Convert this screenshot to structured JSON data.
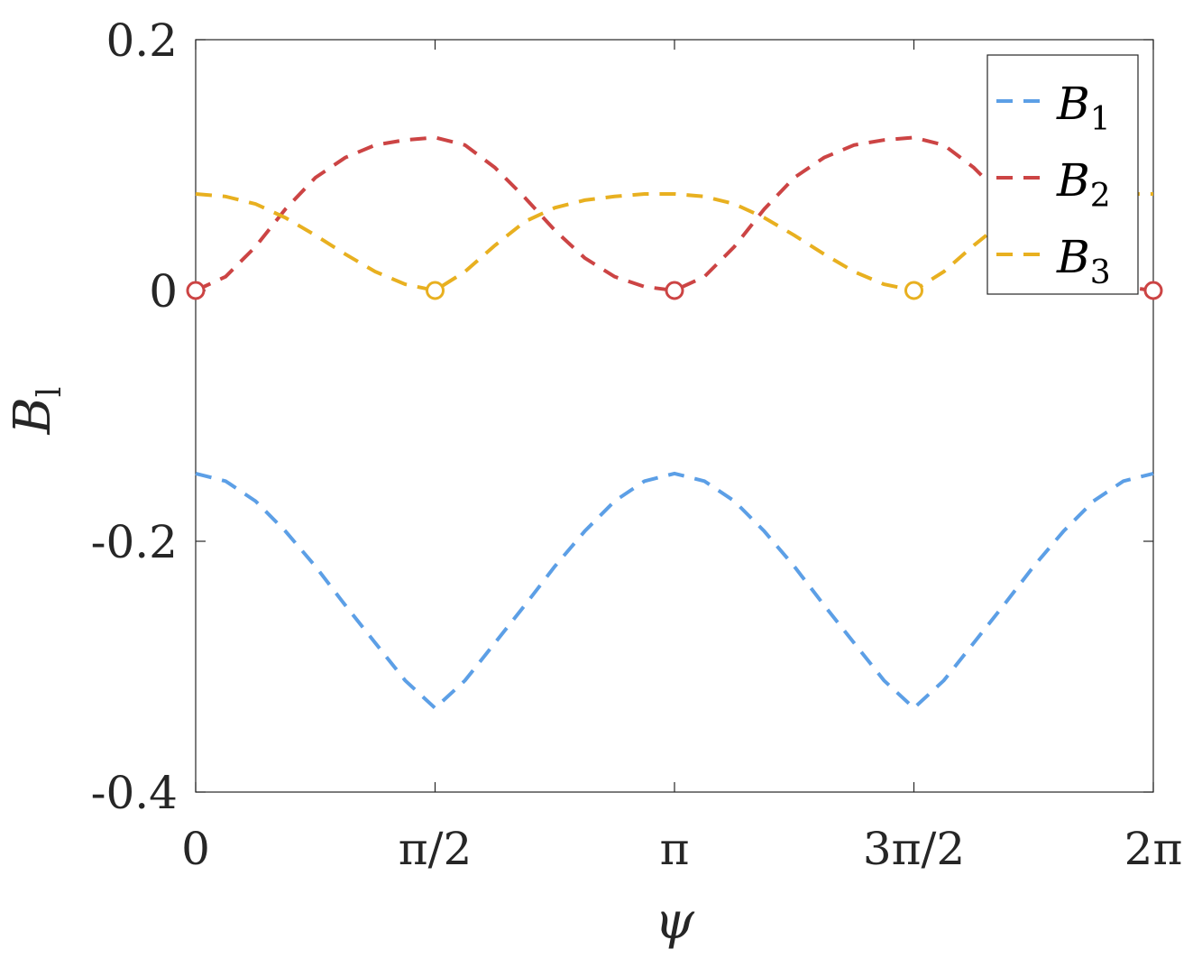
{
  "chart_data": {
    "type": "line",
    "title": "",
    "xlabel": "ψ",
    "ylabel": "B",
    "ylabel_sub": "l",
    "xlim": [
      0,
      6.283185307
    ],
    "ylim": [
      -0.4,
      0.2
    ],
    "xticks": [
      {
        "value": 0,
        "label": "0"
      },
      {
        "value": 1.570796327,
        "label": "π/2"
      },
      {
        "value": 3.141592654,
        "label": "π"
      },
      {
        "value": 4.71238898,
        "label": "3π/2"
      },
      {
        "value": 6.283185307,
        "label": "2π"
      }
    ],
    "yticks": [
      {
        "value": 0.2,
        "label": "0.2"
      },
      {
        "value": 0,
        "label": "0"
      },
      {
        "value": -0.2,
        "label": "-0.2"
      },
      {
        "value": -0.4,
        "label": "-0.4"
      }
    ],
    "grid": false,
    "legend_position": "top-right",
    "x": [
      0,
      0.1963,
      0.3927,
      0.589,
      0.7854,
      0.9817,
      1.1781,
      1.3744,
      1.5708,
      1.7671,
      1.9635,
      2.1598,
      2.3562,
      2.5525,
      2.7489,
      2.9452,
      3.1416,
      3.3379,
      3.5343,
      3.7306,
      3.927,
      4.1233,
      4.3197,
      4.516,
      4.7124,
      4.9087,
      5.1051,
      5.3014,
      5.4978,
      5.6941,
      5.8905,
      6.0868,
      6.2832
    ],
    "series": [
      {
        "name": "B",
        "name_sub": "1",
        "color": "#5c9fe6",
        "values": [
          -0.146,
          -0.152,
          -0.168,
          -0.192,
          -0.22,
          -0.251,
          -0.281,
          -0.311,
          -0.333,
          -0.311,
          -0.281,
          -0.251,
          -0.22,
          -0.192,
          -0.168,
          -0.152,
          -0.146,
          -0.152,
          -0.168,
          -0.192,
          -0.22,
          -0.251,
          -0.281,
          -0.311,
          -0.333,
          -0.311,
          -0.281,
          -0.251,
          -0.22,
          -0.192,
          -0.168,
          -0.152,
          -0.146
        ]
      },
      {
        "name": "B",
        "name_sub": "2",
        "color": "#cc4444",
        "values": [
          0.0,
          0.011,
          0.035,
          0.065,
          0.09,
          0.106,
          0.116,
          0.12,
          0.122,
          0.116,
          0.098,
          0.074,
          0.048,
          0.026,
          0.011,
          0.003,
          0.0,
          0.011,
          0.035,
          0.065,
          0.09,
          0.106,
          0.116,
          0.12,
          0.122,
          0.116,
          0.098,
          0.074,
          0.048,
          0.026,
          0.011,
          0.003,
          0.0
        ]
      },
      {
        "name": "B",
        "name_sub": "3",
        "color": "#e8b020",
        "values": [
          0.077,
          0.075,
          0.069,
          0.058,
          0.044,
          0.029,
          0.015,
          0.005,
          0.0,
          0.015,
          0.036,
          0.055,
          0.066,
          0.072,
          0.075,
          0.077,
          0.077,
          0.075,
          0.069,
          0.058,
          0.044,
          0.029,
          0.015,
          0.005,
          0.0,
          0.015,
          0.036,
          0.055,
          0.066,
          0.072,
          0.075,
          0.077,
          0.077
        ]
      }
    ],
    "markers": [
      {
        "x": 0,
        "y": 0,
        "color": "#cc4444"
      },
      {
        "x": 1.570796327,
        "y": 0,
        "color": "#e8b020"
      },
      {
        "x": 3.141592654,
        "y": 0,
        "color": "#cc4444"
      },
      {
        "x": 4.71238898,
        "y": 0,
        "color": "#e8b020"
      },
      {
        "x": 6.283185307,
        "y": 0,
        "color": "#cc4444"
      }
    ]
  }
}
